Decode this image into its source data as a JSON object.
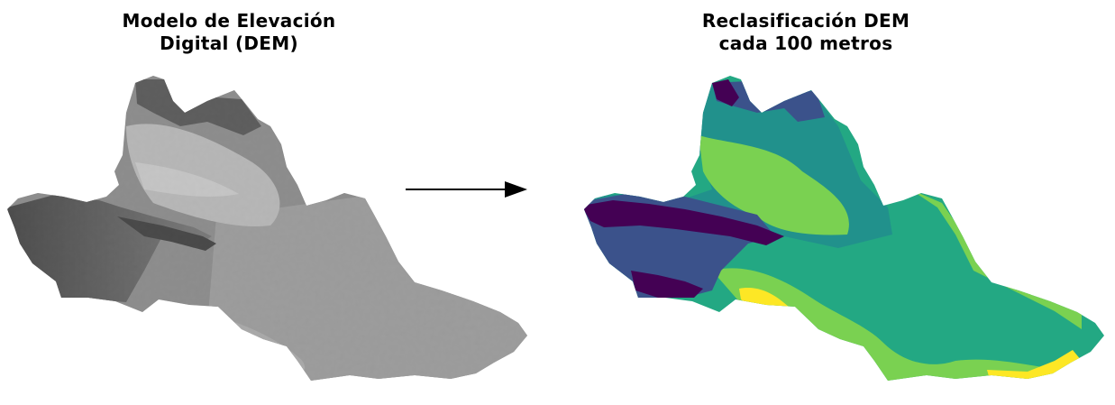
{
  "panels": {
    "left": {
      "title_line1": "Modelo de Elevación",
      "title_line2": "Digital (DEM)",
      "colormap": "grayscale"
    },
    "right": {
      "title_line1": "Reclasificación DEM",
      "title_line2": "cada 100 metros",
      "colormap": "viridis"
    }
  },
  "arrow": {
    "icon": "right-arrow-icon",
    "color": "#000000"
  },
  "colors": {
    "gray_darkest": "#111111",
    "gray_dark": "#4a4a4a",
    "gray_mid": "#9a9a9a",
    "gray_light": "#c9c9c9",
    "gray_lightest": "#eeeeee",
    "class_1": "#440154",
    "class_2": "#3b528b",
    "class_3": "#21918c",
    "class_4": "#23a883",
    "class_5": "#7ad151",
    "class_6": "#fde725"
  }
}
